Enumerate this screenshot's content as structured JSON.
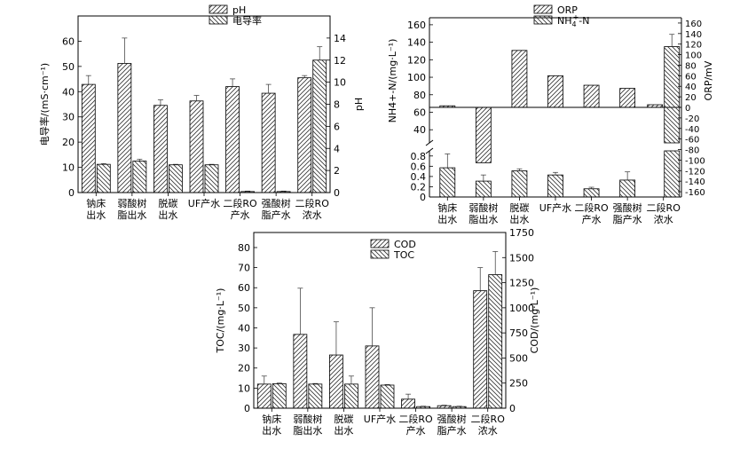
{
  "chart_data": [
    {
      "type": "bar",
      "name": "chart-conductivity-ph",
      "categories": [
        [
          "钠床",
          "出水"
        ],
        [
          "弱酸树",
          "脂出水"
        ],
        [
          "脱碳",
          "出水"
        ],
        [
          "UF产水"
        ],
        [
          "二段RO",
          "产水"
        ],
        [
          "强酸树",
          "脂产水"
        ],
        [
          "二段RO",
          "浓水"
        ]
      ],
      "series": [
        {
          "name": "pH",
          "axis": "right",
          "pattern": "fwd",
          "values": [
            9.8,
            11.7,
            7.9,
            8.3,
            9.6,
            9.0,
            10.4
          ],
          "errors": [
            0.8,
            2.3,
            0.5,
            0.5,
            0.7,
            0.8,
            0.2
          ]
        },
        {
          "name": "电导率",
          "axis": "left",
          "pattern": "back",
          "values": [
            11.2,
            12.5,
            11.0,
            11.0,
            0.4,
            0.4,
            52.5
          ],
          "errors": [
            0.3,
            0.7,
            0.2,
            0.2,
            0.2,
            0.2,
            5.3
          ]
        }
      ],
      "ylabel_left": "电导率/(mS·cm⁻¹)",
      "ylim_left": [
        0,
        70
      ],
      "yticks_left": [
        0,
        10,
        20,
        30,
        40,
        50,
        60
      ],
      "ylabel_right": "pH",
      "ylim_right": [
        0,
        16
      ],
      "yticks_right": [
        0,
        2,
        4,
        6,
        8,
        10,
        12,
        14
      ],
      "legend": "top-center"
    },
    {
      "type": "bar",
      "name": "chart-ammonia-orp",
      "broken_axis": true,
      "categories": [
        [
          "钠床",
          "出水"
        ],
        [
          "弱酸树",
          "脂出水"
        ],
        [
          "脱碳",
          "出水"
        ],
        [
          "UF产水"
        ],
        [
          "二段RO",
          "产水"
        ],
        [
          "强酸树",
          "脂产水"
        ],
        [
          "二段RO",
          "浓水"
        ]
      ],
      "series": [
        {
          "name": "ORP",
          "axis": "right",
          "pattern": "fwd",
          "values": [
            3,
            -105,
            108,
            60,
            42,
            36,
            5
          ],
          "errors": [
            0,
            0,
            0,
            0,
            0,
            0,
            0
          ]
        },
        {
          "name": "NH4+-N",
          "axis": "left",
          "pattern": "back",
          "values": [
            0.57,
            0.31,
            0.51,
            0.43,
            0.16,
            0.33,
            135
          ],
          "errors": [
            0.27,
            0.12,
            0.04,
            0.05,
            0.03,
            0.16,
            14
          ]
        }
      ],
      "ylabel_left": "NH4+-N/(mg·L⁻¹)",
      "yticks_left_upper": [
        40,
        60,
        80,
        100,
        120,
        140,
        160
      ],
      "ylim_left_upper": [
        25,
        168
      ],
      "yticks_left_lower": [
        0,
        0.2,
        0.4,
        0.6,
        0.8
      ],
      "ylim_left_lower": [
        0,
        0.9
      ],
      "ylabel_right": "ORP/mV",
      "ylim_right": [
        -170,
        170
      ],
      "yticks_right": [
        -160,
        -140,
        -120,
        -100,
        -80,
        -60,
        -40,
        -20,
        0,
        20,
        40,
        60,
        80,
        100,
        120,
        140,
        160
      ],
      "legend": "top-center"
    },
    {
      "type": "bar",
      "name": "chart-cod-toc",
      "categories": [
        [
          "钠床",
          "出水"
        ],
        [
          "弱酸树",
          "脂出水"
        ],
        [
          "脱碳",
          "出水"
        ],
        [
          "UF产水"
        ],
        [
          "二段RO",
          "产水"
        ],
        [
          "强酸树",
          "脂产水"
        ],
        [
          "二段RO",
          "浓水"
        ]
      ],
      "series": [
        {
          "name": "COD",
          "axis": "right",
          "pattern": "fwd",
          "values": [
            240,
            735,
            530,
            620,
            90,
            25,
            1170
          ],
          "errors": [
            80,
            460,
            330,
            380,
            50,
            5,
            230
          ]
        },
        {
          "name": "TOC",
          "axis": "left",
          "pattern": "back",
          "values": [
            12.2,
            12.0,
            12.0,
            11.5,
            0.8,
            0.8,
            66.5
          ],
          "errors": [
            0.3,
            0.3,
            4.0,
            0.3,
            0.2,
            0.2,
            11.5
          ]
        }
      ],
      "ylabel_left": "TOC/(mg·L⁻¹)",
      "ylim_left": [
        0,
        87.5
      ],
      "yticks_left": [
        0,
        10,
        20,
        30,
        40,
        50,
        60,
        70,
        80
      ],
      "ylabel_right": "COD/(mg·L⁻¹)",
      "ylim_right": [
        0,
        1750
      ],
      "yticks_right": [
        0,
        250,
        500,
        750,
        1000,
        1250,
        1500,
        1750
      ],
      "legend": "top-center"
    }
  ]
}
